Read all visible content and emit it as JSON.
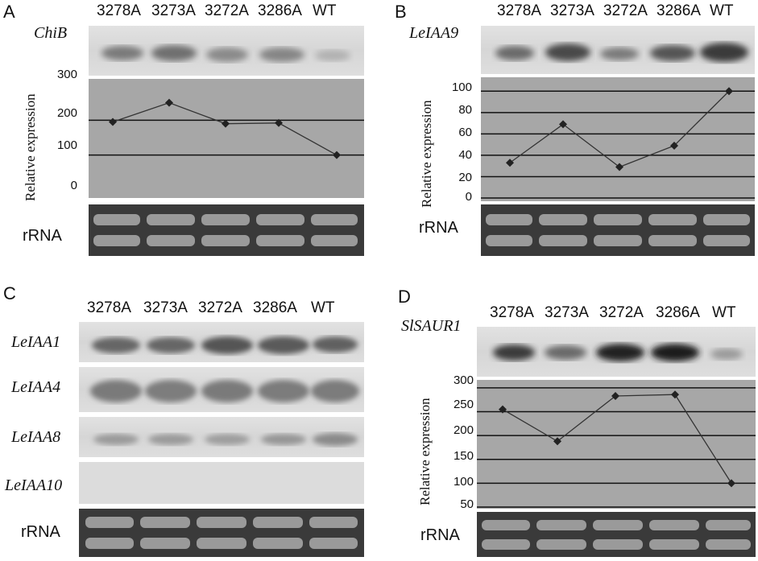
{
  "panels": {
    "A": {
      "letter": "A",
      "gene": "ChiB",
      "lanes": [
        "3278A",
        "3273A",
        "3272A",
        "3286A",
        "WT"
      ],
      "ylabel": "Relative expression",
      "rrna": "rRNA"
    },
    "B": {
      "letter": "B",
      "gene": "LeIAA9",
      "lanes": [
        "3278A",
        "3273A",
        "3272A",
        "3286A",
        "WT"
      ],
      "ylabel": "Relative expression",
      "rrna": "rRNA"
    },
    "C": {
      "letter": "C",
      "genes": [
        "LeIAA1",
        "LeIAA4",
        "LeIAA8",
        "LeIAA10"
      ],
      "lanes": [
        "3278A",
        "3273A",
        "3272A",
        "3286A",
        "WT"
      ],
      "rrna": "rRNA"
    },
    "D": {
      "letter": "D",
      "gene": "SlSAUR1",
      "lanes": [
        "3278A",
        "3273A",
        "3272A",
        "3286A",
        "WT"
      ],
      "ylabel": "Relative expression",
      "rrna": "rRNA"
    }
  },
  "chart_data": [
    {
      "type": "line",
      "panel": "A",
      "categories": [
        "3278A",
        "3273A",
        "3272A",
        "3286A",
        "WT"
      ],
      "series": [
        {
          "values": [
            195,
            250,
            190,
            192,
            100
          ]
        }
      ],
      "yticks": [
        "0",
        "100",
        "200",
        "300"
      ],
      "ylim": [
        0,
        300
      ],
      "ylabel": "Relative expression",
      "grid": "horizontal"
    },
    {
      "type": "line",
      "panel": "B",
      "categories": [
        "3278A",
        "3273A",
        "3272A",
        "3286A",
        "WT"
      ],
      "series": [
        {
          "values": [
            33,
            69,
            29,
            49,
            100
          ]
        }
      ],
      "yticks": [
        "0",
        "20",
        "40",
        "60",
        "80",
        "100"
      ],
      "ylim": [
        0,
        110
      ],
      "ylabel": "Relative expression",
      "grid": "horizontal"
    },
    {
      "type": "line",
      "panel": "D",
      "categories": [
        "3278A",
        "3273A",
        "3272A",
        "3286A",
        "WT"
      ],
      "series": [
        {
          "values": [
            255,
            188,
            283,
            286,
            100
          ]
        }
      ],
      "yticks": [
        "50",
        "100",
        "150",
        "200",
        "250",
        "300"
      ],
      "ylim": [
        50,
        310
      ],
      "ylabel": "Relative expression",
      "grid": "horizontal"
    }
  ],
  "colors": {
    "chart_bg": "#a7a7a7",
    "gridline": "#111111",
    "line": "#333333",
    "marker": "#222222",
    "rrna_bg": "#3a3a3a",
    "rrna_band": "#9a9a9a",
    "band": "#555555"
  }
}
